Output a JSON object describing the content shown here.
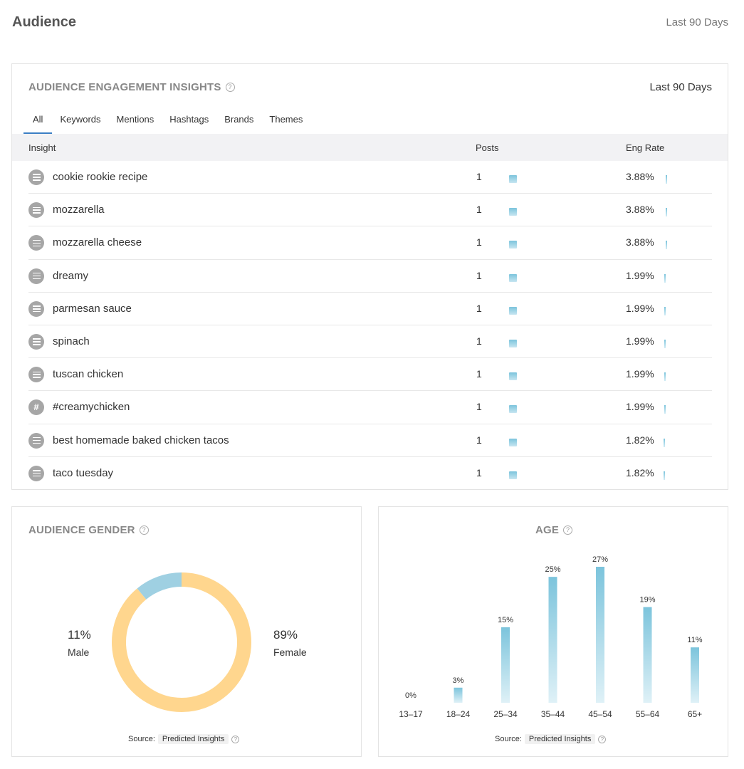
{
  "page": {
    "title": "Audience",
    "range": "Last 90 Days"
  },
  "engagement": {
    "title": "AUDIENCE ENGAGEMENT INSIGHTS",
    "range": "Last 90 Days",
    "tabs": [
      "All",
      "Keywords",
      "Mentions",
      "Hashtags",
      "Brands",
      "Themes"
    ],
    "active_tab": "All",
    "columns": {
      "insight": "Insight",
      "posts": "Posts",
      "eng_rate": "Eng Rate"
    },
    "rows": [
      {
        "type": "keyword-icon",
        "label": "cookie rookie recipe",
        "posts": "1",
        "eng_rate": "3.88%",
        "eng_value": 3.88
      },
      {
        "type": "keyword-icon",
        "label": "mozzarella",
        "posts": "1",
        "eng_rate": "3.88%",
        "eng_value": 3.88
      },
      {
        "type": "keyword-icon",
        "label": "mozzarella cheese",
        "posts": "1",
        "eng_rate": "3.88%",
        "eng_value": 3.88
      },
      {
        "type": "keyword-icon",
        "label": "dreamy",
        "posts": "1",
        "eng_rate": "1.99%",
        "eng_value": 1.99
      },
      {
        "type": "keyword-icon",
        "label": "parmesan sauce",
        "posts": "1",
        "eng_rate": "1.99%",
        "eng_value": 1.99
      },
      {
        "type": "keyword-icon",
        "label": "spinach",
        "posts": "1",
        "eng_rate": "1.99%",
        "eng_value": 1.99
      },
      {
        "type": "keyword-icon",
        "label": "tuscan chicken",
        "posts": "1",
        "eng_rate": "1.99%",
        "eng_value": 1.99
      },
      {
        "type": "hashtag-icon",
        "label": "#creamychicken",
        "posts": "1",
        "eng_rate": "1.99%",
        "eng_value": 1.99
      },
      {
        "type": "keyword-icon",
        "label": "best homemade baked chicken tacos",
        "posts": "1",
        "eng_rate": "1.82%",
        "eng_value": 1.82
      },
      {
        "type": "keyword-icon",
        "label": "taco tuesday",
        "posts": "1",
        "eng_rate": "1.82%",
        "eng_value": 1.82
      }
    ]
  },
  "gender": {
    "title": "AUDIENCE GENDER",
    "male": {
      "pct": "11%",
      "label": "Male"
    },
    "female": {
      "pct": "89%",
      "label": "Female"
    },
    "source_label": "Source:",
    "source_value": "Predicted Insights"
  },
  "age": {
    "title": "AGE",
    "source_label": "Source:",
    "source_value": "Predicted Insights"
  },
  "chart_data": [
    {
      "type": "pie",
      "title": "AUDIENCE GENDER",
      "categories": [
        "Male",
        "Female"
      ],
      "values": [
        11,
        89
      ],
      "colors": [
        "#9fd0e2",
        "#ffd68e"
      ]
    },
    {
      "type": "bar",
      "title": "AGE",
      "categories": [
        "13–17",
        "18–24",
        "25–34",
        "35–44",
        "45–54",
        "55–64",
        "65+"
      ],
      "values": [
        0,
        3,
        15,
        25,
        27,
        19,
        11
      ],
      "labels": [
        "0%",
        "3%",
        "15%",
        "25%",
        "27%",
        "19%",
        "11%"
      ],
      "colors": [
        "#7cc4dc",
        "#dff1f7"
      ]
    }
  ]
}
